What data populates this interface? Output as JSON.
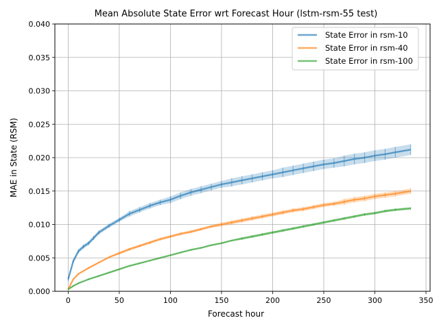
{
  "chart_data": {
    "type": "line",
    "title": "Mean Absolute State Error wrt Forecast Hour (lstm-rsm-55 test)",
    "xlabel": "Forecast hour",
    "ylabel": "MAE in State (RSM)",
    "xlim": [
      -13,
      354
    ],
    "ylim": [
      0,
      0.04
    ],
    "xticks": [
      0,
      50,
      100,
      150,
      200,
      250,
      300,
      350
    ],
    "yticks": [
      0.0,
      0.005,
      0.01,
      0.015,
      0.02,
      0.025,
      0.03,
      0.035,
      0.04
    ],
    "xtick_labels": [
      "0",
      "50",
      "100",
      "150",
      "200",
      "250",
      "300",
      "350"
    ],
    "ytick_labels": [
      "0.000",
      "0.005",
      "0.010",
      "0.015",
      "0.020",
      "0.025",
      "0.030",
      "0.035",
      "0.040"
    ],
    "grid": true,
    "legend_position": "top-right",
    "error_bars": true,
    "series": [
      {
        "name": "State Error in rsm-10",
        "color": "#1f77b4",
        "x": [
          0,
          5,
          10,
          15,
          20,
          25,
          30,
          40,
          50,
          60,
          70,
          80,
          90,
          100,
          110,
          120,
          130,
          140,
          150,
          160,
          170,
          180,
          190,
          200,
          210,
          220,
          230,
          240,
          250,
          260,
          270,
          280,
          290,
          300,
          310,
          320,
          335
        ],
        "y": [
          0.0018,
          0.0045,
          0.006,
          0.0067,
          0.0072,
          0.008,
          0.0088,
          0.0098,
          0.0107,
          0.0116,
          0.0122,
          0.0128,
          0.0133,
          0.0137,
          0.0143,
          0.0148,
          0.0152,
          0.0156,
          0.016,
          0.0163,
          0.0166,
          0.0169,
          0.0172,
          0.0175,
          0.0178,
          0.0181,
          0.0184,
          0.0187,
          0.019,
          0.0192,
          0.0195,
          0.0198,
          0.02,
          0.0203,
          0.0205,
          0.0208,
          0.0212
        ],
        "err": [
          0.0003,
          0.0003,
          0.0003,
          0.0003,
          0.0003,
          0.0003,
          0.0003,
          0.0003,
          0.0003,
          0.0004,
          0.0004,
          0.0004,
          0.0004,
          0.0005,
          0.0005,
          0.0005,
          0.0005,
          0.0005,
          0.0005,
          0.0006,
          0.0006,
          0.0006,
          0.0006,
          0.0006,
          0.0007,
          0.0007,
          0.0007,
          0.0007,
          0.0007,
          0.0007,
          0.0008,
          0.0008,
          0.0008,
          0.0008,
          0.0008,
          0.0008,
          0.0008
        ]
      },
      {
        "name": "State Error in rsm-40",
        "color": "#ff7f0e",
        "x": [
          0,
          5,
          10,
          20,
          30,
          40,
          50,
          60,
          70,
          80,
          90,
          100,
          110,
          120,
          130,
          140,
          150,
          160,
          170,
          180,
          190,
          200,
          210,
          220,
          230,
          240,
          250,
          260,
          270,
          280,
          290,
          300,
          310,
          320,
          335
        ],
        "y": [
          0.0003,
          0.0018,
          0.0026,
          0.0035,
          0.0043,
          0.0051,
          0.0057,
          0.0063,
          0.0068,
          0.0073,
          0.0078,
          0.0082,
          0.0086,
          0.0089,
          0.0093,
          0.0097,
          0.01,
          0.0103,
          0.0106,
          0.0109,
          0.0112,
          0.0115,
          0.0118,
          0.0121,
          0.0123,
          0.0126,
          0.0129,
          0.0131,
          0.0134,
          0.0137,
          0.0139,
          0.0142,
          0.0144,
          0.0146,
          0.015
        ],
        "err": [
          0.0001,
          0.0001,
          0.0001,
          0.0001,
          0.0001,
          0.0001,
          0.0002,
          0.0002,
          0.0002,
          0.0002,
          0.0002,
          0.0002,
          0.0002,
          0.0002,
          0.0002,
          0.0002,
          0.0003,
          0.0003,
          0.0003,
          0.0003,
          0.0003,
          0.0003,
          0.0003,
          0.0003,
          0.0003,
          0.0003,
          0.0003,
          0.0003,
          0.0004,
          0.0004,
          0.0004,
          0.0004,
          0.0004,
          0.0004,
          0.0004
        ]
      },
      {
        "name": "State Error in rsm-100",
        "color": "#2ca02c",
        "x": [
          0,
          5,
          10,
          20,
          30,
          40,
          50,
          60,
          70,
          80,
          90,
          100,
          110,
          120,
          130,
          140,
          150,
          160,
          170,
          180,
          190,
          200,
          210,
          220,
          230,
          240,
          250,
          260,
          270,
          280,
          290,
          300,
          310,
          320,
          335
        ],
        "y": [
          0.0003,
          0.0008,
          0.0012,
          0.0018,
          0.0023,
          0.0028,
          0.0033,
          0.0038,
          0.0042,
          0.0046,
          0.005,
          0.0054,
          0.0058,
          0.0062,
          0.0065,
          0.0069,
          0.0072,
          0.0076,
          0.0079,
          0.0082,
          0.0085,
          0.0088,
          0.0091,
          0.0094,
          0.0097,
          0.01,
          0.0103,
          0.0106,
          0.0109,
          0.0112,
          0.0115,
          0.0117,
          0.012,
          0.0122,
          0.0124
        ],
        "err": [
          0.0001,
          0.0001,
          0.0001,
          0.0001,
          0.0001,
          0.0001,
          0.0001,
          0.0001,
          0.0001,
          0.0001,
          0.0001,
          0.0001,
          0.0001,
          0.0001,
          0.0001,
          0.0001,
          0.0001,
          0.0001,
          0.0002,
          0.0002,
          0.0002,
          0.0002,
          0.0002,
          0.0002,
          0.0002,
          0.0002,
          0.0002,
          0.0002,
          0.0002,
          0.0002,
          0.0002,
          0.0002,
          0.0002,
          0.0002,
          0.0002
        ]
      }
    ]
  }
}
